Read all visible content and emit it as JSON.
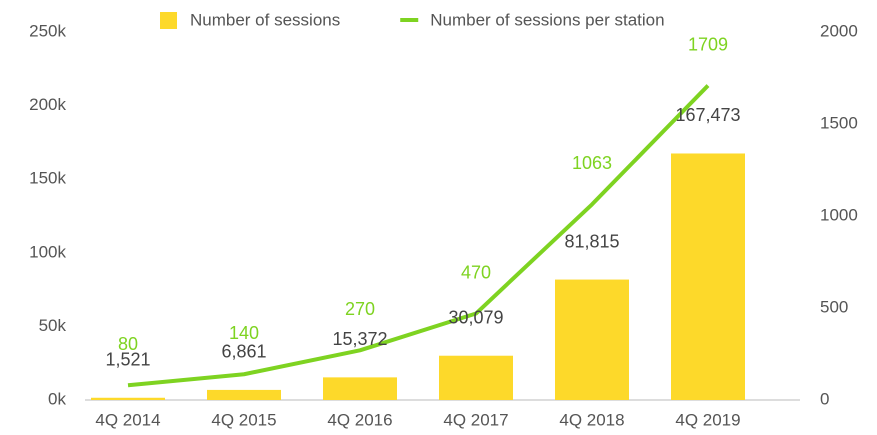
{
  "chart_data": {
    "type": "bar",
    "categories": [
      "4Q 2014",
      "4Q 2015",
      "4Q 2016",
      "4Q 2017",
      "4Q 2018",
      "4Q 2019"
    ],
    "series": [
      {
        "name": "Number of sessions",
        "type": "bar",
        "color": "#fdd92a",
        "axis": "y",
        "values": [
          1521,
          6861,
          15372,
          30079,
          81815,
          167473
        ],
        "value_labels": [
          "1,521",
          "6,861",
          "15,372",
          "30,079",
          "81,815",
          "167,473"
        ]
      },
      {
        "name": "Number of sessions per station",
        "type": "line",
        "color": "#7ed321",
        "axis": "y2",
        "values": [
          80,
          140,
          270,
          470,
          1063,
          1709
        ]
      }
    ],
    "ylim": [
      0,
      250000
    ],
    "yticks": [
      {
        "value": 0,
        "label": "0k"
      },
      {
        "value": 50000,
        "label": "50k"
      },
      {
        "value": 100000,
        "label": "100k"
      },
      {
        "value": 150000,
        "label": "150k"
      },
      {
        "value": 200000,
        "label": "200k"
      },
      {
        "value": 250000,
        "label": "250k"
      }
    ],
    "y2lim": [
      0,
      2000
    ],
    "y2ticks": [
      0,
      500,
      1000,
      1500,
      2000
    ],
    "legend": "top"
  }
}
